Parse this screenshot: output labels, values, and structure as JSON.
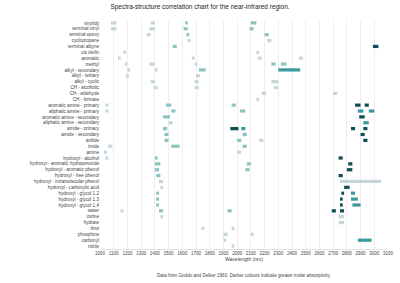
{
  "chart_data": {
    "type": "bar",
    "orientation": "horizontal",
    "title": "Spectra-structure correlation chart for the near-infrared region.",
    "x_label": "Wavelength (nm)",
    "note": "Data from Goddu and Delker 1960. Darker colours indicate greater molar absorptivity.",
    "grid": true,
    "xlim": [
      1000,
      3100
    ],
    "xticks": [
      1000,
      1100,
      1200,
      1300,
      1400,
      1500,
      1600,
      1700,
      1800,
      1900,
      2000,
      2100,
      2200,
      2300,
      2400,
      2500,
      2600,
      2700,
      2800,
      2900,
      3000,
      3100
    ],
    "categories": [
      "vinylidy",
      "terminal vinyl",
      "terminal epoxy",
      "cyclopropane",
      "terminal alkyne",
      "cis olefin",
      "aromatic",
      "methyl",
      "alkyl - secondary",
      "alkyl - tertiary",
      "alkyl - cyclic",
      "CH - alcoholic",
      "CH - aldehyde",
      "CH - formate",
      "aromatic amine - primary",
      "aliphatic amine - primary",
      "aromatic amine - secondary",
      "aliphatic amine - secondary",
      "amide - primary",
      "amide - secondary",
      "anilide",
      "imide",
      "amine",
      "hydroxyl - alcohol",
      "hydroxyl - aromatic hydroperoxide",
      "hydroxyl - aromatic phenol",
      "hydroxyl - free phenol",
      "hydroxyl - intramolecular phenol",
      "hydroxyl - carboxylic acid",
      "hydroxyl - glycol 1,2",
      "hydroxyl - glycol 1,3",
      "hydroxyl - glycol 1,4",
      "water",
      "oxime",
      "hydrate",
      "thiol",
      "phosphine",
      "carbonyl",
      "nitrile"
    ],
    "series": [
      {
        "color": "#c4d6da",
        "values": [
          [
            [
              1080,
              1120
            ],
            [
              1370,
              1400
            ]
          ],
          [
            [
              1080,
              1120
            ],
            [
              1360,
              1400
            ]
          ],
          [
            [
              1340,
              1370
            ]
          ],
          [
            [
              1640,
              1660
            ],
            [
              2220,
              2250
            ]
          ],
          [],
          [
            [
              1170,
              1190
            ],
            [
              2140,
              2160
            ]
          ],
          [
            [
              1130,
              1150
            ],
            [
              1670,
              1690
            ],
            [
              2150,
              2180
            ],
            [
              2450,
              2480
            ]
          ],
          [
            [
              1180,
              1200
            ],
            [
              1360,
              1400
            ],
            [
              1690,
              1710
            ]
          ],
          [
            [
              1200,
              1220
            ],
            [
              1400,
              1420
            ]
          ],
          [
            [
              1190,
              1210
            ],
            [
              1700,
              1730
            ]
          ],
          [
            [
              1370,
              1400
            ],
            [
              1690,
              1720
            ],
            [
              2250,
              2300
            ]
          ],
          [
            [
              1390,
              1420
            ],
            [
              1690,
              1720
            ],
            [
              2270,
              2300
            ]
          ],
          [
            [
              2180,
              2210
            ],
            [
              2700,
              2730
            ]
          ],
          [
            [
              2140,
              2160
            ]
          ],
          [
            [
              1040,
              1060
            ]
          ],
          [
            [
              1040,
              1060
            ]
          ],
          [],
          [
            [
              1500,
              1530
            ]
          ],
          [],
          [],
          [
            [
              2160,
              2190
            ]
          ],
          [
            [
              1060,
              1090
            ]
          ],
          [
            [
              1030,
              1050
            ],
            [
              2000,
              2030
            ]
          ],
          [
            [
              1040,
              1060
            ]
          ],
          [],
          [],
          [],
          [
            [
              1430,
              1460
            ],
            [
              2750,
              3050
            ]
          ],
          [
            [
              1440,
              1460
            ]
          ],
          [],
          [],
          [],
          [
            [
              1150,
              1170
            ]
          ],
          [
            [
              1440,
              1460
            ],
            [
              2740,
              2780
            ]
          ],
          [
            [
              2740,
              2780
            ]
          ],
          [
            [
              1740,
              1760
            ],
            [
              1960,
              1980
            ]
          ],
          [
            [
              1900,
              1930
            ],
            [
              2100,
              2120
            ]
          ],
          [
            [
              1900,
              1920
            ]
          ],
          [
            [
              1960,
              1980
            ]
          ]
        ]
      },
      {
        "color": "#8cc3c3",
        "values": [
          [
            [
              1620,
              1640
            ],
            [
              2100,
              2140
            ]
          ],
          [
            [
              1610,
              1640
            ],
            [
              2090,
              2120
            ]
          ],
          [
            [
              1630,
              1650
            ],
            [
              2200,
              2230
            ]
          ],
          [],
          [
            [
              1530,
              1560
            ]
          ],
          [],
          [],
          [
            [
              2250,
              2280
            ],
            [
              2320,
              2360
            ]
          ],
          [
            [
              1720,
              1770
            ]
          ],
          [],
          [],
          [],
          [],
          [],
          [
            [
              1480,
              1520
            ],
            [
              1960,
              1990
            ]
          ],
          [
            [
              1520,
              1550
            ],
            [
              2020,
              2060
            ]
          ],
          [
            [
              1460,
              1510
            ]
          ],
          [],
          [
            [
              1460,
              1490
            ]
          ],
          [
            [
              1470,
              1500
            ],
            [
              2040,
              2070
            ]
          ],
          [
            [
              1470,
              1500
            ],
            [
              2000,
              2030
            ]
          ],
          [
            [
              1520,
              1580
            ],
            [
              2040,
              2070
            ]
          ],
          [],
          [
            [
              1400,
              1420
            ]
          ],
          [
            [
              1400,
              1440
            ],
            [
              2070,
              2100
            ]
          ],
          [
            [
              1400,
              1430
            ],
            [
              2060,
              2090
            ]
          ],
          [
            [
              1410,
              1440
            ]
          ],
          [],
          [],
          [
            [
              1410,
              1430
            ]
          ],
          [
            [
              1410,
              1430
            ]
          ],
          [
            [
              1410,
              1430
            ]
          ],
          [
            [
              1430,
              1460
            ],
            [
              1930,
              1960
            ]
          ],
          [],
          [],
          [],
          [],
          [],
          []
        ]
      },
      {
        "color": "#3c9a9e",
        "values": [
          [],
          [],
          [],
          [],
          [],
          [],
          [],
          [],
          [
            [
              2300,
              2460
            ]
          ],
          [],
          [],
          [],
          [],
          [],
          [],
          [
            [
              2880,
              2920
            ],
            [
              2960,
              3000
            ]
          ],
          [],
          [
            [
              2920,
              2960
            ]
          ],
          [
            [
              2030,
              2060
            ]
          ],
          [],
          [],
          [],
          [],
          [],
          [],
          [],
          [],
          [],
          [],
          [
            [
              2830,
              2860
            ]
          ],
          [
            [
              2830,
              2880
            ]
          ],
          [
            [
              2840,
              2900
            ]
          ],
          [],
          [],
          [],
          [],
          [],
          [
            [
              2880,
              2980
            ]
          ],
          []
        ]
      },
      {
        "color": "#0d4f55",
        "values": [
          [],
          [],
          [],
          [],
          [
            [
              2990,
              3030
            ]
          ],
          [],
          [],
          [],
          [],
          [],
          [],
          [],
          [],
          [],
          [
            [
              2860,
              2900
            ],
            [
              2930,
              2960
            ]
          ],
          [],
          [
            [
              2890,
              2930
            ]
          ],
          [],
          [
            [
              1950,
              2010
            ],
            [
              2830,
              2860
            ],
            [
              2920,
              2950
            ]
          ],
          [
            [
              2900,
              2930
            ]
          ],
          [
            [
              2920,
              2950
            ]
          ],
          [],
          [],
          [
            [
              2740,
              2770
            ]
          ],
          [
            [
              2810,
              2840
            ]
          ],
          [
            [
              2800,
              2840
            ]
          ],
          [
            [
              2740,
              2770
            ]
          ],
          [],
          [
            [
              2780,
              2820
            ]
          ],
          [
            [
              2760,
              2780
            ]
          ],
          [
            [
              2750,
              2770
            ]
          ],
          [
            [
              2750,
              2770
            ]
          ],
          [
            [
              2690,
              2720
            ],
            [
              2750,
              2780
            ]
          ],
          [],
          [],
          [],
          [],
          [],
          []
        ]
      }
    ]
  }
}
